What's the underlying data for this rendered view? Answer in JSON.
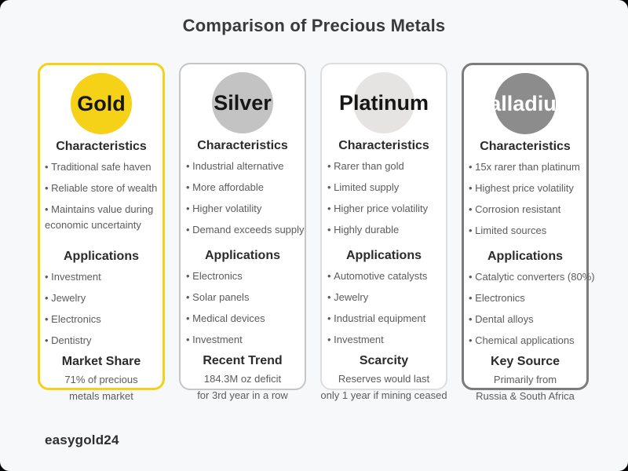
{
  "theme": {
    "page_bg": "#F7F8FA",
    "card_bg": "#FFFFFF",
    "title_color": "#3A3A3A",
    "heading_color": "#2B2B2B",
    "text_color": "#5C5C5C",
    "corner_bg": "#000000"
  },
  "title": "Comparison of Precious Metals",
  "brand": "easygold24",
  "cards": [
    {
      "name": "Gold",
      "accent": "#F5D118",
      "border_color": "#F5D118",
      "circle_color": "#F5D118",
      "name_color": "#161616",
      "characteristics_title": "Characteristics",
      "characteristics": [
        "Traditional safe haven",
        "Reliable store of wealth",
        "Maintains value during economic uncertainty"
      ],
      "applications_title": "Applications",
      "applications": [
        "Investment",
        "Jewelry",
        "Electronics",
        "Dentistry"
      ],
      "footer_title": "Market Share",
      "footer_lines": [
        "71% of precious",
        "metals market"
      ]
    },
    {
      "name": "Silver",
      "accent": "#C3C3C3",
      "border_color": "#C6C6C6",
      "circle_color": "#C3C3C3",
      "name_color": "#161616",
      "characteristics_title": "Characteristics",
      "characteristics": [
        "Industrial alternative",
        "More affordable",
        "Higher volatility",
        "Demand exceeds supply"
      ],
      "applications_title": "Applications",
      "applications": [
        "Electronics",
        "Solar panels",
        "Medical devices",
        "Investment"
      ],
      "footer_title": "Recent Trend",
      "footer_lines": [
        "184.3M oz deficit",
        "for 3rd year in a row"
      ]
    },
    {
      "name": "Platinum",
      "accent": "#E5E4E2",
      "border_color": "#DEDEDE",
      "circle_color": "#E5E4E2",
      "name_color": "#161616",
      "characteristics_title": "Characteristics",
      "characteristics": [
        "Rarer than gold",
        "Limited supply",
        "Higher price volatility",
        "Highly durable"
      ],
      "applications_title": "Applications",
      "applications": [
        "Automotive catalysts",
        "Jewelry",
        "Industrial equipment",
        "Investment"
      ],
      "footer_title": "Scarcity",
      "footer_lines": [
        "Reserves would last",
        "only 1 year if mining ceased"
      ]
    },
    {
      "name": "Palladium",
      "accent": "#8C8C8C",
      "border_color": "#7C7C7C",
      "circle_color": "#8C8C8C",
      "name_color": "#FFFFFF",
      "characteristics_title": "Characteristics",
      "characteristics": [
        "15x rarer than platinum",
        "Highest price volatility",
        "Corrosion resistant",
        "Limited sources"
      ],
      "applications_title": "Applications",
      "applications": [
        "Catalytic converters (80%)",
        "Electronics",
        "Dental alloys",
        "Chemical applications"
      ],
      "footer_title": "Key Source",
      "footer_lines": [
        "Primarily from",
        "Russia & South Africa"
      ]
    }
  ],
  "chart_data": {
    "type": "table",
    "title": "Comparison of Precious Metals",
    "categories": [
      "Gold",
      "Silver",
      "Platinum",
      "Palladium"
    ],
    "series": [
      {
        "name": "Characteristics",
        "values": [
          [
            "Traditional safe haven",
            "Reliable store of wealth",
            "Maintains value during economic uncertainty"
          ],
          [
            "Industrial alternative",
            "More affordable",
            "Higher volatility",
            "Demand exceeds supply"
          ],
          [
            "Rarer than gold",
            "Limited supply",
            "Higher price volatility",
            "Highly durable"
          ],
          [
            "15x rarer than platinum",
            "Highest price volatility",
            "Corrosion resistant",
            "Limited sources"
          ]
        ]
      },
      {
        "name": "Applications",
        "values": [
          [
            "Investment",
            "Jewelry",
            "Electronics",
            "Dentistry"
          ],
          [
            "Electronics",
            "Solar panels",
            "Medical devices",
            "Investment"
          ],
          [
            "Automotive catalysts",
            "Jewelry",
            "Industrial equipment",
            "Investment"
          ],
          [
            "Catalytic converters (80%)",
            "Electronics",
            "Dental alloys",
            "Chemical applications"
          ]
        ]
      },
      {
        "name": "Highlight",
        "values": [
          {
            "label": "Market Share",
            "value": "71% of precious metals market"
          },
          {
            "label": "Recent Trend",
            "value": "184.3M oz deficit for 3rd year in a row"
          },
          {
            "label": "Scarcity",
            "value": "Reserves would last only 1 year if mining ceased"
          },
          {
            "label": "Key Source",
            "value": "Primarily from Russia & South Africa"
          }
        ]
      }
    ]
  }
}
